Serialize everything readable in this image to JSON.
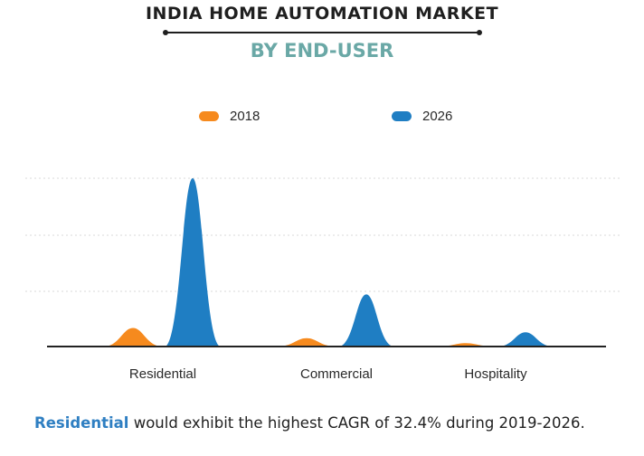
{
  "header": {
    "title": "INDIA HOME AUTOMATION MARKET",
    "subtitle": "BY END-USER"
  },
  "colors": {
    "series_2018": "#f68a1e",
    "series_2026": "#1f7ec3",
    "subtitle": "#6aa8a6",
    "highlight": "#2f7fc2"
  },
  "chart_data": {
    "type": "area",
    "categories": [
      "Residential",
      "Commercial",
      "Hospitality"
    ],
    "series": [
      {
        "name": "2018",
        "values": [
          0.11,
          0.05,
          0.02
        ]
      },
      {
        "name": "2026",
        "values": [
          1.0,
          0.31,
          0.085
        ]
      }
    ],
    "legend_position": "top",
    "grid": true
  },
  "footnote": {
    "highlight": "Residential",
    "text": " would exhibit the highest CAGR of 32.4% during 2019-2026."
  }
}
